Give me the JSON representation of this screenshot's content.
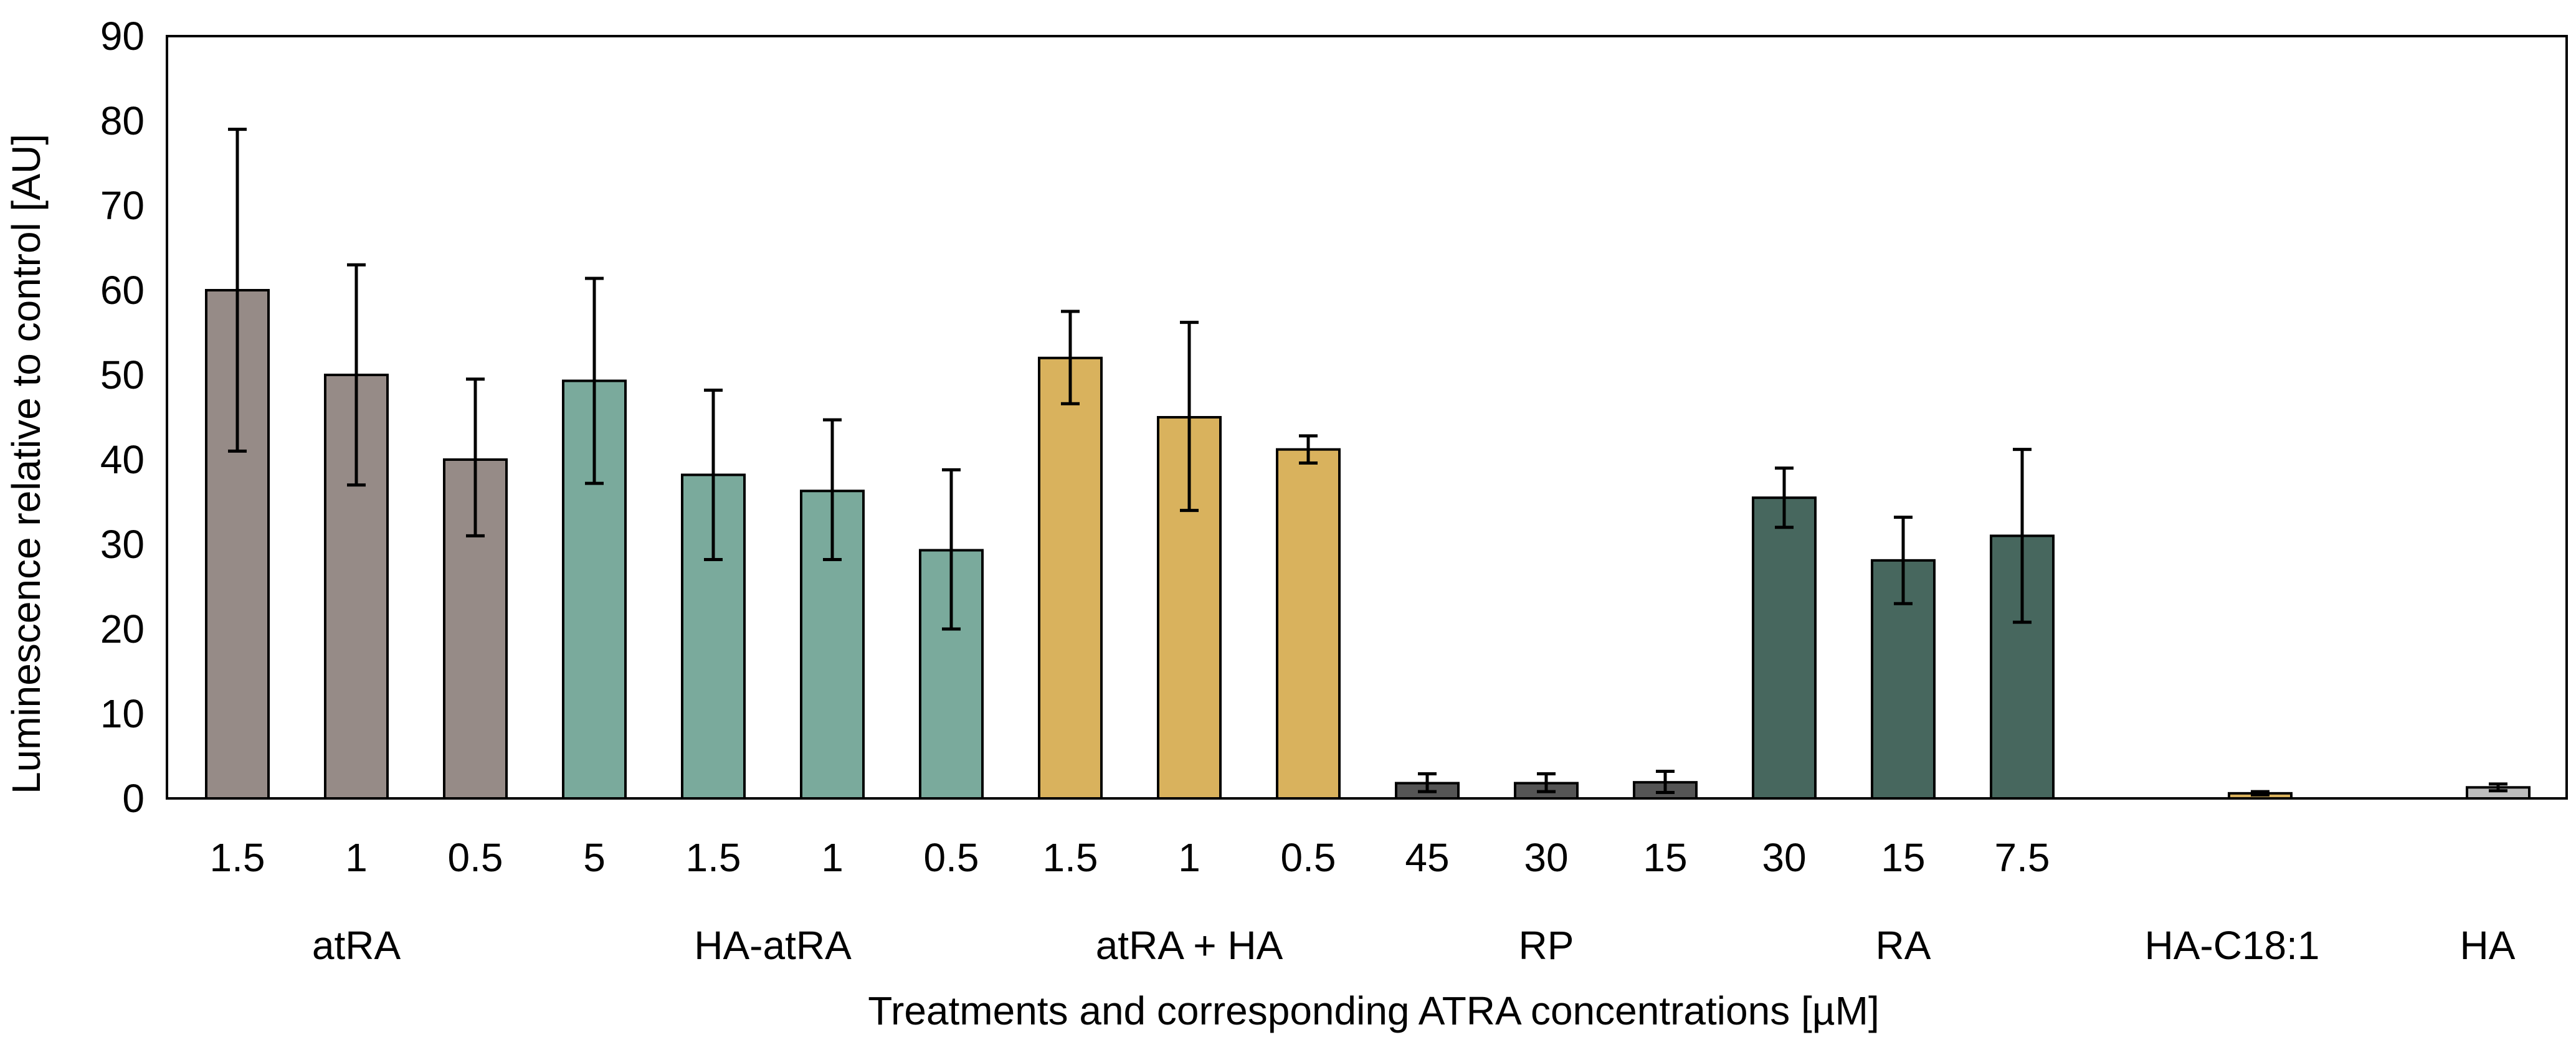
{
  "chart_data": {
    "type": "bar",
    "title": "",
    "xlabel": "Treatments and corresponding ATRA concentrations [µM]",
    "ylabel": "Luminescence relative to control [AU]",
    "ylim": [
      0,
      90
    ],
    "yticks": [
      0,
      10,
      20,
      30,
      40,
      50,
      60,
      70,
      80,
      90
    ],
    "grid": false,
    "legend": "none",
    "colors": {
      "atRA": "#968b87",
      "HA-atRA": "#7aaa9c",
      "atRA + HA": "#d9b25d",
      "RP": "#555555",
      "RA": "#47675e",
      "HA-C18:1": "#d9b25d",
      "HA": "#bdbdbd"
    },
    "groups": [
      {
        "name": "atRA",
        "bars": [
          {
            "label": "1.5",
            "value": 60,
            "err_low": 41,
            "err_high": 79
          },
          {
            "label": "1",
            "value": 50,
            "err_low": 37,
            "err_high": 63
          },
          {
            "label": "0.5",
            "value": 40,
            "err_low": 31,
            "err_high": 49.5
          }
        ]
      },
      {
        "name": "HA-atRA",
        "bars": [
          {
            "label": "5",
            "value": 49.3,
            "err_low": 37.2,
            "err_high": 61.4
          },
          {
            "label": "1.5",
            "value": 38.2,
            "err_low": 28.2,
            "err_high": 48.2
          },
          {
            "label": "1",
            "value": 36.3,
            "err_low": 28.2,
            "err_high": 44.7
          },
          {
            "label": "0.5",
            "value": 29.3,
            "err_low": 20,
            "err_high": 38.8
          }
        ]
      },
      {
        "name": "atRA + HA",
        "bars": [
          {
            "label": "1.5",
            "value": 52,
            "err_low": 46.6,
            "err_high": 57.5
          },
          {
            "label": "1",
            "value": 45,
            "err_low": 34,
            "err_high": 56.2
          },
          {
            "label": "0.5",
            "value": 41.2,
            "err_low": 39.6,
            "err_high": 42.8
          }
        ]
      },
      {
        "name": "RP",
        "bars": [
          {
            "label": "45",
            "value": 1.8,
            "err_low": 0.8,
            "err_high": 2.9
          },
          {
            "label": "30",
            "value": 1.8,
            "err_low": 0.8,
            "err_high": 2.9
          },
          {
            "label": "15",
            "value": 1.9,
            "err_low": 0.7,
            "err_high": 3.2
          }
        ]
      },
      {
        "name": "RA",
        "bars": [
          {
            "label": "30",
            "value": 35.5,
            "err_low": 32,
            "err_high": 39
          },
          {
            "label": "15",
            "value": 28.1,
            "err_low": 23,
            "err_high": 33.2
          },
          {
            "label": "7.5",
            "value": 31,
            "err_low": 20.8,
            "err_high": 41.2
          }
        ]
      },
      {
        "name": "HA-C18:1",
        "bars": [
          {
            "label": "",
            "value": 0.6,
            "err_low": 0.4,
            "err_high": 0.8
          }
        ]
      },
      {
        "name": "HA",
        "bars": [
          {
            "label": "",
            "value": 1.3,
            "err_low": 0.9,
            "err_high": 1.7
          }
        ]
      }
    ]
  }
}
